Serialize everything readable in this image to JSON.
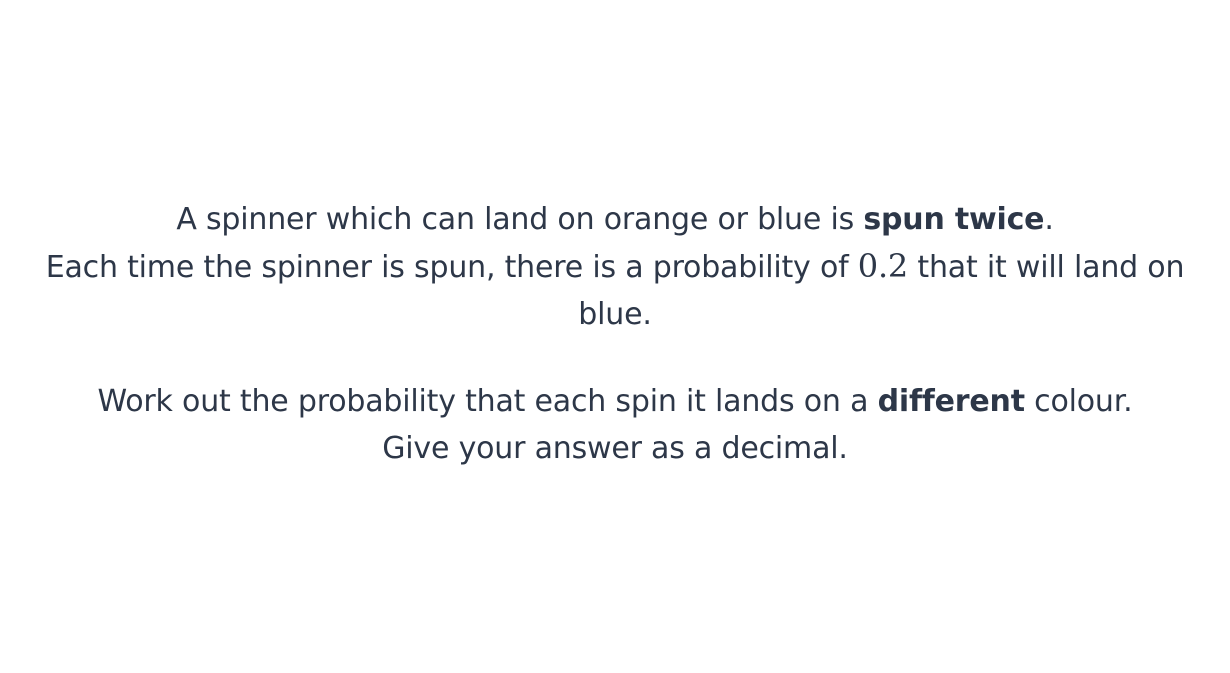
{
  "question": {
    "line1_start": "A spinner which can land on orange or blue is ",
    "line1_bold": "spun twice",
    "line1_end": ".",
    "line2_start": "Each time the spinner is spun, there is a probability of ",
    "line2_math": "0.2",
    "line2_end": " that it will land on blue.",
    "line3_start": "Work out the probability that each spin it lands on a ",
    "line3_bold": "different",
    "line3_end": " colour.",
    "line4": "Give your answer as a decimal."
  }
}
